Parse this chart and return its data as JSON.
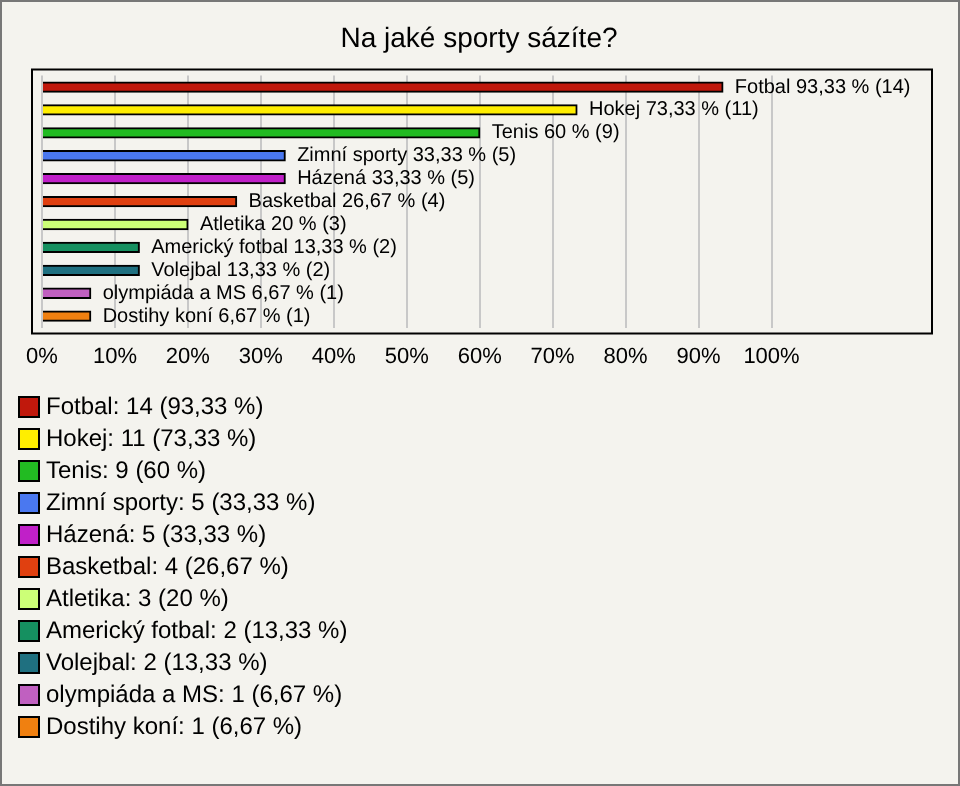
{
  "chart_data": {
    "type": "bar",
    "orientation": "horizontal",
    "title": "Na jaké sporty sázíte?",
    "categories": [
      "Fotbal",
      "Hokej",
      "Tenis",
      "Zimní sporty",
      "Házená",
      "Basketbal",
      "Atletika",
      "Americký fotbal",
      "Volejbal",
      "olympiáda a MS",
      "Dostihy koní"
    ],
    "values": [
      93.33,
      73.33,
      60,
      33.33,
      33.33,
      26.67,
      20,
      13.33,
      13.33,
      6.67,
      6.67
    ],
    "colors": [
      "#c0180c",
      "#ffee00",
      "#22bb22",
      "#4a78f0",
      "#c020c8",
      "#e04010",
      "#ccff77",
      "#159060",
      "#1f7080",
      "#c060c0",
      "#f08010"
    ],
    "value_labels": [
      "93,33 % (14)",
      "73,33 % (11)",
      "60 % (9)",
      "33,33 % (5)",
      "33,33 % (5)",
      "26,67 % (4)",
      "20 % (3)",
      "13,33 % (2)",
      "13,33 % (2)",
      "6,67 % (1)",
      "6,67 % (1)"
    ],
    "annotations": [
      "Fotbal: 14 (93,33 %)",
      "Hokej: 11 (73,33 %)",
      "Tenis: 9 (60 %)",
      "Zimní sporty: 5 (33,33 %)",
      "Házená: 5 (33,33 %)",
      "Basketbal: 4 (26,67 %)",
      "Atletika: 3 (20 %)",
      "Americký fotbal: 2 (13,33 %)",
      "Volejbal: 2 (13,33 %)",
      "olympiáda a MS: 1 (6,67 %)",
      "Dostihy koní: 1 (6,67 %)"
    ],
    "xlim": [
      0,
      122
    ],
    "xticks": [
      {
        "value": 0,
        "label": "0%"
      },
      {
        "value": 10,
        "label": "10%"
      },
      {
        "value": 20,
        "label": "20%"
      },
      {
        "value": 30,
        "label": "30%"
      },
      {
        "value": 40,
        "label": "40%"
      },
      {
        "value": 50,
        "label": "50%"
      },
      {
        "value": 60,
        "label": "60%"
      },
      {
        "value": 70,
        "label": "70%"
      },
      {
        "value": 80,
        "label": "80%"
      },
      {
        "value": 90,
        "label": "90%"
      },
      {
        "value": 100,
        "label": "100%"
      }
    ],
    "grid": "x",
    "tick_labels": "x",
    "legend": false
  }
}
